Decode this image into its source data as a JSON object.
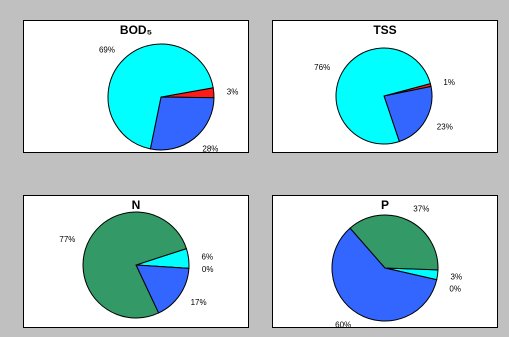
{
  "chart_data": [
    {
      "type": "pie",
      "title": "BOD₅",
      "slices": [
        {
          "label": "3%",
          "value": 3,
          "color": "#ff1a1a"
        },
        {
          "label": "28%",
          "value": 28,
          "color": "#3366ff"
        },
        {
          "label": "69%",
          "value": 69,
          "color": "#00ffff"
        }
      ]
    },
    {
      "type": "pie",
      "title": "TSS",
      "slices": [
        {
          "label": "1%",
          "value": 1,
          "color": "#ff1a1a"
        },
        {
          "label": "23%",
          "value": 23,
          "color": "#3366ff"
        },
        {
          "label": "76%",
          "value": 76,
          "color": "#00ffff"
        }
      ]
    },
    {
      "type": "pie",
      "title": "N",
      "slices": [
        {
          "label": "6%",
          "value": 6,
          "color": "#00ffff"
        },
        {
          "label": "0%",
          "value": 0,
          "color": "#ff1a1a"
        },
        {
          "label": "17%",
          "value": 17,
          "color": "#3366ff"
        },
        {
          "label": "77%",
          "value": 77,
          "color": "#339966"
        }
      ]
    },
    {
      "type": "pie",
      "title": "P",
      "slices": [
        {
          "label": "3%",
          "value": 3,
          "color": "#00ffff"
        },
        {
          "label": "0%",
          "value": 0,
          "color": "#ff1a1a"
        },
        {
          "label": "60%",
          "value": 60,
          "color": "#3366ff"
        },
        {
          "label": "37%",
          "value": 37,
          "color": "#339966"
        }
      ]
    }
  ]
}
